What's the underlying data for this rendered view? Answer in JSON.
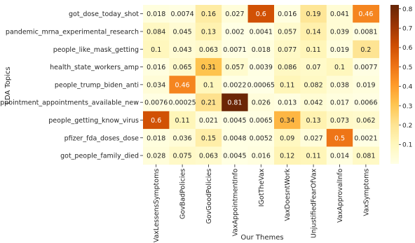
{
  "chart_data": {
    "type": "heatmap",
    "xlabel": "Our Themes",
    "ylabel": "LDA Topics",
    "x_categories": [
      "VaxLessensSymptoms",
      "GovBadPolicies",
      "GovGoodPolicies",
      "VaxAppointmentInfo",
      "IGotTheVax",
      "VaxDoesntWork",
      "UnjustifiedFearOfVax",
      "VaxApprovalInfo",
      "VaxSymptoms"
    ],
    "y_categories": [
      "got_dose_today_shot",
      "pandemic_mrna_experimental_research",
      "people_like_mask_getting",
      "health_state_workers_amp",
      "people_trump_biden_anti",
      "appointment_appointments_available_new",
      "people_getting_know_virus",
      "pfizer_fda_doses_dose",
      "got_people_family_died"
    ],
    "values": [
      [
        "0.018",
        "0.0074",
        "0.16",
        "0.027",
        "0.6",
        "0.016",
        "0.19",
        "0.041",
        "0.46"
      ],
      [
        "0.084",
        "0.045",
        "0.13",
        "0.002",
        "0.0041",
        "0.057",
        "0.14",
        "0.039",
        "0.0081"
      ],
      [
        "0.1",
        "0.043",
        "0.063",
        "0.0071",
        "0.018",
        "0.077",
        "0.11",
        "0.019",
        "0.2"
      ],
      [
        "0.016",
        "0.065",
        "0.31",
        "0.057",
        "0.0039",
        "0.086",
        "0.07",
        "0.1",
        "0.0077"
      ],
      [
        "0.034",
        "0.46",
        "0.1",
        "0.0022",
        "0.00065",
        "0.11",
        "0.082",
        "0.038",
        "0.019"
      ],
      [
        "0.0076",
        "0.00025",
        "0.21",
        "0.81",
        "0.026",
        "0.013",
        "0.042",
        "0.017",
        "0.0066"
      ],
      [
        "0.6",
        "0.11",
        "0.021",
        "0.0045",
        "0.0065",
        "0.34",
        "0.13",
        "0.073",
        "0.062"
      ],
      [
        "0.018",
        "0.036",
        "0.15",
        "0.0048",
        "0.0052",
        "0.09",
        "0.027",
        "0.5",
        "0.0021"
      ],
      [
        "0.028",
        "0.075",
        "0.063",
        "0.0045",
        "0.016",
        "0.12",
        "0.11",
        "0.014",
        "0.081"
      ]
    ],
    "colorbar": {
      "range": [
        0,
        0.82
      ],
      "ticks": [
        "0.1",
        "0.2",
        "0.3",
        "0.4",
        "0.5",
        "0.6",
        "0.7",
        "0.8"
      ],
      "colors": [
        "#ffffe5",
        "#fff7bc",
        "#fee391",
        "#fec44f",
        "#fe9929",
        "#ec7014",
        "#cc4c02",
        "#993404",
        "#662506"
      ]
    }
  }
}
